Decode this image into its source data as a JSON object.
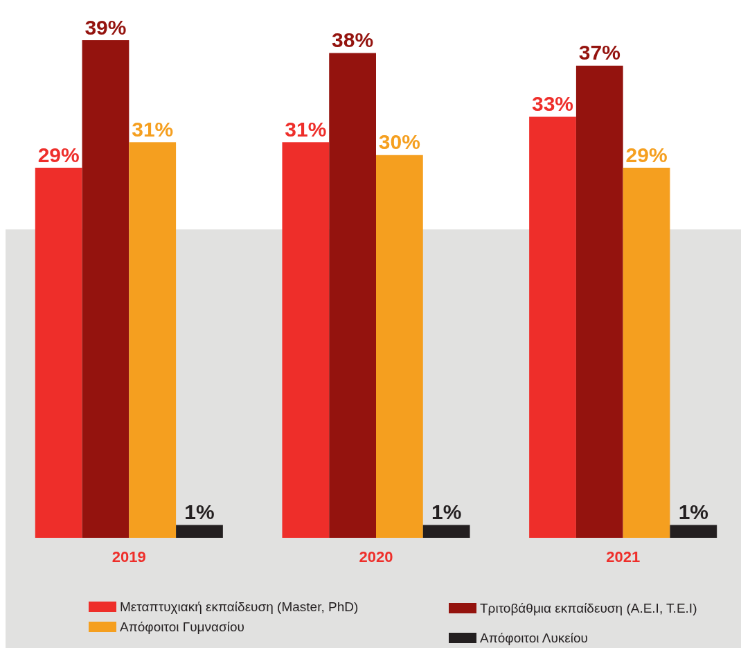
{
  "chart_data": {
    "type": "bar",
    "categories": [
      "2019",
      "2020",
      "2021"
    ],
    "series": [
      {
        "name": "Μεταπτυχιακή εκπαίδευση (Master, PhD)",
        "color": "#ee2e2a",
        "values": [
          29,
          31,
          33
        ],
        "value_labels": [
          "29%",
          "31%",
          "33%"
        ]
      },
      {
        "name": "Τριτοβάθμια εκπαίδευση (Α.Ε.Ι, Τ.Ε.Ι)",
        "color": "#94130e",
        "values": [
          39,
          38,
          37
        ],
        "value_labels": [
          "39%",
          "38%",
          "37%"
        ]
      },
      {
        "name": "Απόφοιτοι Γυμνασίου",
        "color": "#f59f1f",
        "values": [
          31,
          30,
          29
        ],
        "value_labels": [
          "31%",
          "30%",
          "29%"
        ]
      },
      {
        "name": "Απόφοιτοι Λυκείου",
        "color": "#231f20",
        "values": [
          1,
          1,
          1
        ],
        "value_labels": [
          "1%",
          "1%",
          "1%"
        ]
      }
    ],
    "legend": "bottom"
  }
}
